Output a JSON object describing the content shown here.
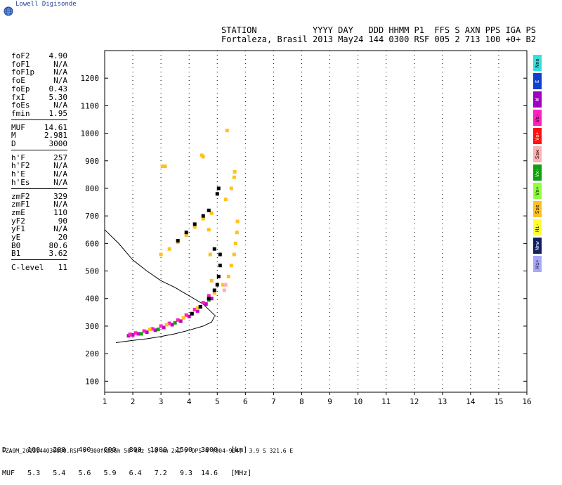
{
  "logo": {
    "text": "Lowell Digisonde"
  },
  "header": {
    "line1": "STATION           YYYY DAY   DDD HHMM P1  FFS S AXN PPS IGA PS",
    "line2": "Fortaleza, Brasil 2013 May24 144 0300 RSF 005 2 713 100 +0+ B2"
  },
  "params": {
    "group1": [
      {
        "label": "foF2",
        "value": "4.90"
      },
      {
        "label": "foF1",
        "value": "N/A"
      },
      {
        "label": "foF1p",
        "value": "N/A"
      },
      {
        "label": "foE",
        "value": "N/A"
      },
      {
        "label": "foEp",
        "value": "0.43"
      },
      {
        "label": "fxI",
        "value": "5.30"
      },
      {
        "label": "foEs",
        "value": "N/A"
      },
      {
        "label": "fmin",
        "value": "1.95"
      }
    ],
    "group2": [
      {
        "label": "MUF",
        "value": "14.61"
      },
      {
        "label": "M",
        "value": "2.981"
      },
      {
        "label": "D",
        "value": "3000"
      }
    ],
    "group3": [
      {
        "label": "h'F",
        "value": "257"
      },
      {
        "label": "h'F2",
        "value": "N/A"
      },
      {
        "label": "h'E",
        "value": "N/A"
      },
      {
        "label": "h'Es",
        "value": "N/A"
      }
    ],
    "group4": [
      {
        "label": "zmF2",
        "value": "329"
      },
      {
        "label": "zmF1",
        "value": "N/A"
      },
      {
        "label": "zmE",
        "value": "110"
      },
      {
        "label": "yF2",
        "value": "90"
      },
      {
        "label": "yF1",
        "value": "N/A"
      },
      {
        "label": "yE",
        "value": "20"
      },
      {
        "label": "B0",
        "value": "80.6"
      },
      {
        "label": "B1",
        "value": "3.62"
      }
    ],
    "group5": [
      {
        "label": "C-level",
        "value": "11"
      }
    ]
  },
  "legend": [
    {
      "label": "Nno",
      "color": "#33e0e0"
    },
    {
      "label": "E",
      "color": "#1040d0"
    },
    {
      "label": "W",
      "color": "#a000c0"
    },
    {
      "label": "Vo-",
      "color": "#ff20c0"
    },
    {
      "label": "Vo+",
      "color": "#ff1010"
    },
    {
      "label": "Ssw",
      "color": "#ffb0b0"
    },
    {
      "label": "Vx-",
      "color": "#10a010"
    },
    {
      "label": "Vx+",
      "color": "#90ff40"
    },
    {
      "label": "Sse",
      "color": "#ffc020"
    },
    {
      "label": "Hi-",
      "color": "#ffff30"
    },
    {
      "label": "Nnw",
      "color": "#102060"
    },
    {
      "label": "Hi+",
      "color": "#a8a8f8"
    }
  ],
  "footer": {
    "table_line1": "D     100   200   400   600   800  1000  1500  3000   [km]",
    "table_line2": "MUF   5.3   5.4   5.6   5.9   6.4   7.2   9.3  14.6   [MHz]",
    "file_line": "FZA0M_2013144030000.RSF / 300fx256h 50 kHz 5.0 km 2x2 / DPS-4 (904-904)  3.9 S 321.6 E"
  },
  "chart_data": {
    "type": "scatter",
    "title": "",
    "xlabel": "",
    "ylabel": "",
    "xlim": [
      1,
      16
    ],
    "ylim": [
      60,
      1300
    ],
    "xticks": [
      1,
      2,
      3,
      4,
      5,
      6,
      7,
      8,
      9,
      10,
      11,
      12,
      13,
      14,
      15,
      16
    ],
    "yticks": [
      100,
      200,
      300,
      400,
      500,
      600,
      700,
      800,
      900,
      1000,
      1100,
      1200
    ],
    "grid": true,
    "series": [
      {
        "color": "#c000c0",
        "points": [
          [
            1.85,
            265
          ],
          [
            2.0,
            268
          ],
          [
            2.2,
            272
          ],
          [
            2.5,
            278
          ],
          [
            2.8,
            285
          ],
          [
            3.1,
            295
          ],
          [
            3.4,
            305
          ],
          [
            3.7,
            318
          ],
          [
            4.0,
            335
          ],
          [
            4.3,
            355
          ],
          [
            4.6,
            380
          ],
          [
            4.8,
            400
          ]
        ]
      },
      {
        "color": "#ff20c0",
        "points": [
          [
            1.9,
            270
          ],
          [
            2.1,
            275
          ],
          [
            2.4,
            282
          ],
          [
            2.7,
            290
          ],
          [
            3.0,
            300
          ],
          [
            3.3,
            310
          ],
          [
            3.6,
            322
          ],
          [
            3.9,
            340
          ],
          [
            4.2,
            360
          ],
          [
            4.5,
            385
          ],
          [
            4.7,
            410
          ]
        ]
      },
      {
        "color": "#10a010",
        "points": [
          [
            2.3,
            272
          ],
          [
            2.9,
            288
          ],
          [
            3.5,
            312
          ],
          [
            4.1,
            345
          ],
          [
            4.4,
            370
          ],
          [
            4.7,
            395
          ]
        ]
      },
      {
        "color": "#ffc020",
        "points": [
          [
            2.6,
            288
          ],
          [
            3.2,
            305
          ],
          [
            3.8,
            330
          ],
          [
            4.3,
            365
          ],
          [
            4.9,
            420
          ],
          [
            5.2,
            450
          ],
          [
            5.4,
            480
          ],
          [
            5.5,
            520
          ],
          [
            5.6,
            560
          ],
          [
            5.65,
            600
          ],
          [
            5.7,
            640
          ],
          [
            5.72,
            680
          ],
          [
            3.0,
            560
          ],
          [
            3.3,
            580
          ],
          [
            3.6,
            605
          ],
          [
            3.9,
            630
          ],
          [
            4.2,
            660
          ],
          [
            4.5,
            690
          ],
          [
            4.8,
            710
          ],
          [
            5.3,
            760
          ],
          [
            5.5,
            800
          ],
          [
            5.6,
            840
          ],
          [
            5.62,
            860
          ],
          [
            4.8,
            465
          ],
          [
            4.75,
            560
          ],
          [
            4.7,
            650
          ]
        ]
      },
      {
        "color": "#000000",
        "points": [
          [
            4.1,
            345
          ],
          [
            4.4,
            370
          ],
          [
            4.7,
            400
          ],
          [
            4.9,
            430
          ],
          [
            5.0,
            450
          ],
          [
            5.05,
            480
          ],
          [
            5.1,
            520
          ],
          [
            5.1,
            560
          ],
          [
            4.9,
            580
          ],
          [
            3.6,
            610
          ],
          [
            3.9,
            640
          ],
          [
            4.2,
            670
          ],
          [
            4.5,
            700
          ],
          [
            4.7,
            720
          ],
          [
            5.0,
            780
          ],
          [
            5.05,
            800
          ]
        ]
      },
      {
        "color": "#ffb0b0",
        "points": [
          [
            5.25,
            430
          ],
          [
            5.3,
            450
          ]
        ]
      },
      {
        "color": "#ffc020",
        "points": [
          [
            3.05,
            880
          ],
          [
            3.15,
            880
          ],
          [
            4.45,
            920
          ],
          [
            4.5,
            915
          ],
          [
            5.35,
            1010
          ]
        ]
      }
    ],
    "lines": [
      {
        "name": "",
        "color": "#000000",
        "points": [
          [
            1.0,
            650
          ],
          [
            1.5,
            600
          ],
          [
            2.0,
            540
          ],
          [
            2.5,
            500
          ],
          [
            3.0,
            465
          ],
          [
            3.5,
            440
          ],
          [
            4.0,
            410
          ],
          [
            4.5,
            380
          ],
          [
            4.8,
            350
          ],
          [
            4.95,
            335
          ]
        ]
      },
      {
        "name": "",
        "color": "#000000",
        "points": [
          [
            1.4,
            240
          ],
          [
            2.0,
            248
          ],
          [
            2.5,
            254
          ],
          [
            3.0,
            262
          ],
          [
            3.5,
            272
          ],
          [
            4.0,
            285
          ],
          [
            4.5,
            300
          ],
          [
            4.8,
            315
          ],
          [
            4.9,
            335
          ]
        ]
      }
    ]
  }
}
